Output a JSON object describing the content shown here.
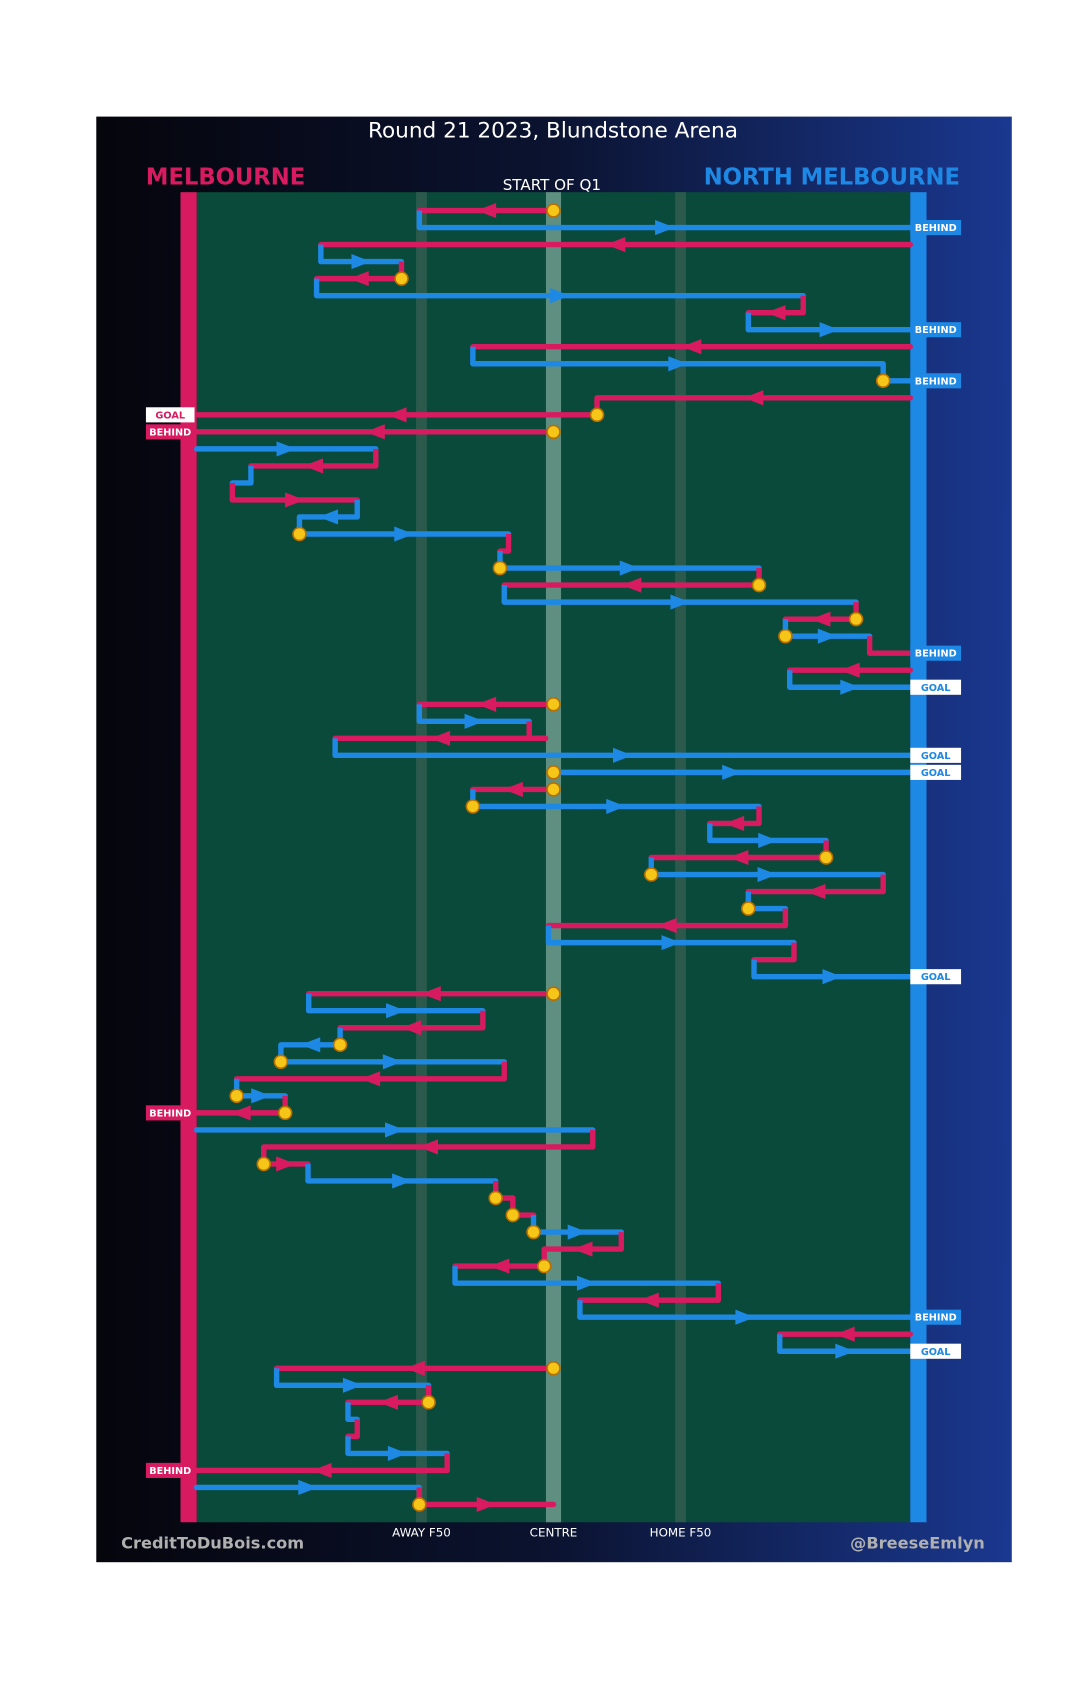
{
  "title": "Round 21 2023, Blundstone Arena",
  "start_label": "START OF Q1",
  "teams": [
    {
      "name": "MELBOURNE",
      "color": "#d81b60"
    },
    {
      "name": "NORTH MELBOURNE",
      "color": "#1e88e5"
    }
  ],
  "field": {
    "xlim": [
      0,
      100
    ],
    "markers": [
      {
        "label": "AWAY F50",
        "x": 31.5
      },
      {
        "label": "CENTRE",
        "x": 50
      },
      {
        "label": "HOME F50",
        "x": 67.8
      }
    ]
  },
  "credits": {
    "left": "CreditToDuBois.com",
    "right": "@BreeseEmlyn"
  },
  "rows": [
    {
      "team": 0,
      "from": 50,
      "to": 31.2,
      "stop": true
    },
    {
      "team": 1,
      "from": 31.2,
      "to": 100,
      "result": "BEHIND",
      "result_fill": true
    },
    {
      "team": 0,
      "from": 100,
      "to": 17.4
    },
    {
      "team": 1,
      "from": 17.4,
      "to": 28.7
    },
    {
      "team": 0,
      "from": 28.7,
      "to": 16.8,
      "stop": true
    },
    {
      "team": 1,
      "from": 16.8,
      "to": 85.0
    },
    {
      "team": 0,
      "from": 85.0,
      "to": 77.3
    },
    {
      "team": 1,
      "from": 77.3,
      "to": 100,
      "result": "BEHIND",
      "result_fill": true
    },
    {
      "team": 0,
      "from": 100,
      "to": 38.7
    },
    {
      "team": 1,
      "from": 38.7,
      "to": 96.2
    },
    {
      "team": 1,
      "from": 96.2,
      "to": 100,
      "stop": true,
      "result": "BEHIND",
      "result_fill": true
    },
    {
      "team": 0,
      "from": 100,
      "to": 56.1
    },
    {
      "team": 0,
      "from": 56.1,
      "to": 0,
      "stop": true,
      "result": "GOAL",
      "result_fill": false
    },
    {
      "team": 0,
      "from": 50,
      "to": 0,
      "stop": true,
      "result": "BEHIND",
      "result_fill": true
    },
    {
      "team": 1,
      "from": 0,
      "to": 25.1
    },
    {
      "team": 0,
      "from": 25.1,
      "to": 7.6
    },
    {
      "team": 1,
      "from": 7.6,
      "to": 5.0
    },
    {
      "team": 0,
      "from": 5.0,
      "to": 22.5
    },
    {
      "team": 1,
      "from": 22.5,
      "to": 14.4
    },
    {
      "team": 1,
      "from": 14.4,
      "to": 43.7,
      "stop": true
    },
    {
      "team": 0,
      "from": 43.7,
      "to": 42.5
    },
    {
      "team": 1,
      "from": 42.5,
      "to": 78.8,
      "stop": true
    },
    {
      "team": 0,
      "from": 78.8,
      "to": 43.1,
      "stop": true
    },
    {
      "team": 1,
      "from": 43.1,
      "to": 92.4
    },
    {
      "team": 0,
      "from": 92.4,
      "to": 82.5,
      "stop": true
    },
    {
      "team": 1,
      "from": 82.5,
      "to": 94.3,
      "stop": true
    },
    {
      "team": 0,
      "from": 94.3,
      "to": 100,
      "result": "BEHIND",
      "result_fill": true
    },
    {
      "team": 0,
      "from": 100,
      "to": 83.1
    },
    {
      "team": 1,
      "from": 83.1,
      "to": 100,
      "result": "GOAL",
      "result_fill": false
    },
    {
      "team": 0,
      "from": 50,
      "to": 31.2,
      "stop": true
    },
    {
      "team": 1,
      "from": 31.2,
      "to": 46.6
    },
    {
      "team": 0,
      "from": 48.9,
      "to": 19.4
    },
    {
      "team": 1,
      "from": 19.4,
      "to": 100,
      "result": "GOAL",
      "result_fill": false
    },
    {
      "team": 1,
      "from": 50,
      "to": 100,
      "stop": true,
      "result": "GOAL",
      "result_fill": false
    },
    {
      "team": 0,
      "from": 50,
      "to": 38.7,
      "stop": true
    },
    {
      "team": 1,
      "from": 38.7,
      "to": 78.8,
      "stop": true
    },
    {
      "team": 0,
      "from": 78.8,
      "to": 71.9
    },
    {
      "team": 1,
      "from": 71.9,
      "to": 88.2
    },
    {
      "team": 0,
      "from": 88.2,
      "to": 63.7,
      "stop": true
    },
    {
      "team": 1,
      "from": 63.7,
      "to": 96.2,
      "stop": true
    },
    {
      "team": 0,
      "from": 96.2,
      "to": 77.3
    },
    {
      "team": 1,
      "from": 77.3,
      "to": 82.5,
      "stop": true
    },
    {
      "team": 0,
      "from": 82.5,
      "to": 49.3
    },
    {
      "team": 1,
      "from": 49.3,
      "to": 83.7
    },
    {
      "team": 0,
      "from": 83.7,
      "to": 78.1
    },
    {
      "team": 1,
      "from": 78.1,
      "to": 100,
      "result": "GOAL",
      "result_fill": false
    },
    {
      "team": 0,
      "from": 50,
      "to": 15.7,
      "stop": true
    },
    {
      "team": 1,
      "from": 15.7,
      "to": 40.1
    },
    {
      "team": 0,
      "from": 40.1,
      "to": 20.1
    },
    {
      "team": 1,
      "from": 20.1,
      "to": 11.8,
      "stop": true
    },
    {
      "team": 1,
      "from": 11.8,
      "to": 43.1,
      "stop": true
    },
    {
      "team": 0,
      "from": 43.1,
      "to": 5.6
    },
    {
      "team": 1,
      "from": 5.6,
      "to": 12.4,
      "stop": true
    },
    {
      "team": 0,
      "from": 12.4,
      "to": 0,
      "stop": true,
      "result": "BEHIND",
      "result_fill": true
    },
    {
      "team": 1,
      "from": 0,
      "to": 55.5
    },
    {
      "team": 0,
      "from": 55.5,
      "to": 9.4
    },
    {
      "team": 0,
      "from": 9.4,
      "to": 15.6,
      "stop": true
    },
    {
      "team": 1,
      "from": 15.6,
      "to": 41.9
    },
    {
      "team": 0,
      "from": 41.9,
      "to": 44.3,
      "stop": true
    },
    {
      "team": 0,
      "from": 44.3,
      "to": 47.2,
      "stop": true
    },
    {
      "team": 1,
      "from": 47.2,
      "to": 59.5,
      "stop": true
    },
    {
      "team": 0,
      "from": 59.5,
      "to": 48.7
    },
    {
      "team": 0,
      "from": 48.7,
      "to": 36.2,
      "stop": true
    },
    {
      "team": 1,
      "from": 36.2,
      "to": 73.1
    },
    {
      "team": 0,
      "from": 73.1,
      "to": 53.7
    },
    {
      "team": 1,
      "from": 53.7,
      "to": 100,
      "result": "BEHIND",
      "result_fill": true
    },
    {
      "team": 0,
      "from": 100,
      "to": 81.7
    },
    {
      "team": 1,
      "from": 81.7,
      "to": 100,
      "result": "GOAL",
      "result_fill": false
    },
    {
      "team": 0,
      "from": 50,
      "to": 11.2,
      "stop": true
    },
    {
      "team": 1,
      "from": 11.2,
      "to": 32.5
    },
    {
      "team": 0,
      "from": 32.5,
      "to": 21.2,
      "stop": true
    },
    {
      "team": 1,
      "from": 21.2,
      "to": 22.5
    },
    {
      "team": 0,
      "from": 22.5,
      "to": 21.2
    },
    {
      "team": 1,
      "from": 21.2,
      "to": 35.1
    },
    {
      "team": 0,
      "from": 35.1,
      "to": 0,
      "result": "BEHIND",
      "result_fill": true
    },
    {
      "team": 1,
      "from": 0,
      "to": 31.2
    },
    {
      "team": 0,
      "from": 31.2,
      "to": 50,
      "stop": true
    }
  ]
}
